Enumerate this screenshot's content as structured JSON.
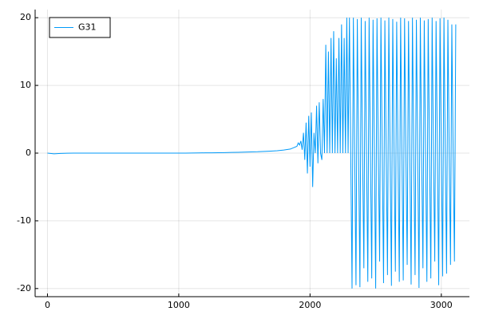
{
  "chart_data": {
    "type": "line",
    "x": [
      0,
      50,
      100,
      150,
      200,
      250,
      300,
      350,
      400,
      450,
      500,
      550,
      600,
      650,
      700,
      750,
      800,
      850,
      900,
      950,
      1000,
      1050,
      1100,
      1150,
      1200,
      1250,
      1300,
      1350,
      1400,
      1450,
      1500,
      1550,
      1600,
      1650,
      1700,
      1750,
      1800,
      1850,
      1900,
      1910,
      1920,
      1930,
      1940,
      1950,
      1960,
      1970,
      1980,
      1990,
      2000,
      2010,
      2020,
      2030,
      2040,
      2050,
      2060,
      2070,
      2080,
      2090,
      2100,
      2110,
      2120,
      2130,
      2140,
      2150,
      2160,
      2170,
      2180,
      2190,
      2200,
      2210,
      2220,
      2230,
      2240,
      2250,
      2260,
      2270,
      2280,
      2290,
      2300,
      2310,
      2320,
      2330,
      2340,
      2350,
      2360,
      2370,
      2380,
      2390,
      2400,
      2410,
      2420,
      2430,
      2440,
      2450,
      2460,
      2470,
      2480,
      2490,
      2500,
      2510,
      2520,
      2530,
      2540,
      2550,
      2560,
      2570,
      2580,
      2590,
      2600,
      2610,
      2620,
      2630,
      2640,
      2650,
      2660,
      2670,
      2680,
      2690,
      2700,
      2710,
      2720,
      2730,
      2740,
      2750,
      2760,
      2770,
      2780,
      2790,
      2800,
      2810,
      2820,
      2830,
      2840,
      2850,
      2860,
      2870,
      2880,
      2890,
      2900,
      2910,
      2920,
      2930,
      2940,
      2950,
      2960,
      2970,
      2980,
      2990,
      3000,
      3010,
      3020,
      3030,
      3040,
      3050,
      3060,
      3070,
      3080,
      3090,
      3100,
      3110
    ],
    "series": [
      {
        "name": "G31",
        "color": "#009af9",
        "values": [
          0,
          -0.1,
          -0.05,
          -0.02,
          0,
          0,
          0,
          0,
          0,
          0,
          0,
          0,
          0,
          0,
          0,
          0,
          0,
          0,
          0,
          0,
          0,
          0,
          0.02,
          0.03,
          0.04,
          0.05,
          0.06,
          0.08,
          0.1,
          0.12,
          0.15,
          0.18,
          0.2,
          0.25,
          0.3,
          0.35,
          0.45,
          0.6,
          1,
          1.5,
          1.2,
          1.8,
          0.5,
          3,
          -1,
          4.5,
          -3,
          5.5,
          -2,
          6,
          -5,
          3,
          0,
          7,
          -1.5,
          7.5,
          0,
          -1,
          8,
          0,
          16,
          0,
          15,
          0,
          17,
          0,
          18,
          0,
          14,
          0,
          17,
          0,
          19,
          0,
          17,
          0,
          20,
          0,
          20,
          0,
          -20,
          20,
          0,
          -19.5,
          19.8,
          0,
          -19.8,
          20,
          0,
          -17,
          19.5,
          0,
          -19,
          20,
          0,
          -18.5,
          19.7,
          0,
          -20,
          19.9,
          0,
          -16,
          20,
          0,
          -19.2,
          19.6,
          0,
          -18,
          20,
          0,
          -19.6,
          19.8,
          0,
          -17.5,
          19.4,
          0,
          -19,
          20,
          0,
          -18.8,
          19.9,
          0,
          -16.5,
          19.5,
          0,
          -19.4,
          20,
          0,
          -18,
          19.7,
          0,
          -19.9,
          20,
          0,
          -17,
          19.6,
          0,
          -19,
          19.8,
          0,
          -18.5,
          20,
          0,
          -16,
          19.5,
          0,
          -19.5,
          19.9,
          0,
          -18.2,
          20,
          0,
          -17.8,
          19.7,
          0,
          -16.5,
          19,
          0,
          -16,
          19
        ]
      }
    ],
    "xlim": [
      -94,
      3214
    ],
    "ylim": [
      -21.2,
      21.2
    ],
    "xticks": [
      0,
      1000,
      2000,
      3000
    ],
    "yticks": [
      -20,
      -10,
      0,
      10,
      20
    ],
    "grid": true,
    "legend": "top-left"
  }
}
